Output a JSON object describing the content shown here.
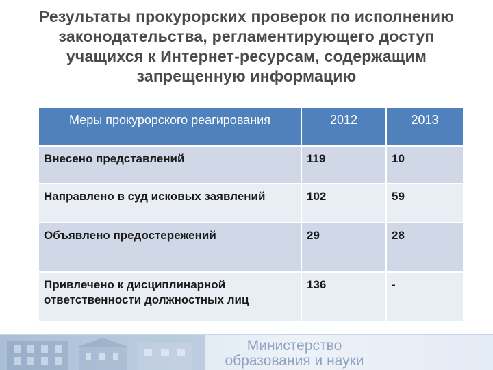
{
  "title": {
    "line1": "Результаты прокурорских проверок по исполнению",
    "line2": "законодательства, регламентирующего доступ",
    "line3": "учащихся к Интернет-ресурсам, содержащим",
    "line4": "запрещенную информацию"
  },
  "table": {
    "headers": [
      "Меры прокурорского реагирования",
      "2012",
      "2013"
    ],
    "rows": [
      [
        "Внесено представлений",
        "119",
        "10"
      ],
      [
        "Направлено в суд исковых заявлений",
        "102",
        "59"
      ],
      [
        "Объявлено предостережений",
        "29",
        "28"
      ],
      [
        "Привлечено к дисциплинарной ответственности должностных лиц",
        "136",
        "-"
      ]
    ]
  },
  "footer": {
    "line1": "Министерство",
    "line2": "образования и науки"
  },
  "colors": {
    "header_bg": "#4f81bd",
    "row_dark": "#d0d8e8",
    "row_light": "#e9edf4"
  }
}
